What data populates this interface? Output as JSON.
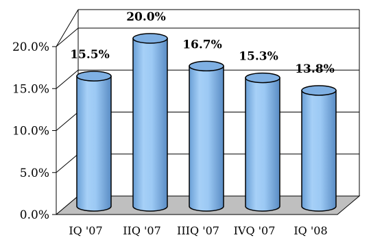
{
  "chart_data": {
    "type": "bar",
    "style": "3d-cylinder",
    "categories": [
      "IQ '07",
      "IIQ '07",
      "IIIQ '07",
      "IVQ '07",
      "IQ '08"
    ],
    "values": [
      15.5,
      20.0,
      16.7,
      15.3,
      13.8
    ],
    "data_labels": [
      "15.5%",
      "20.0%",
      "16.7%",
      "15.3%",
      "13.8%"
    ],
    "y_ticks": [
      "0.0%",
      "5.0%",
      "10.0%",
      "15.0%",
      "20.0%"
    ],
    "ylim": [
      0,
      20
    ],
    "title": "",
    "xlabel": "",
    "ylabel": "",
    "grid": true,
    "legend": "none",
    "colors": {
      "bar": "#99c8f3",
      "bar_dark": "#5b8fc8",
      "bar_top": "#7fb0e3",
      "floor": "#bfbfbf",
      "gridline": "#000000"
    }
  }
}
